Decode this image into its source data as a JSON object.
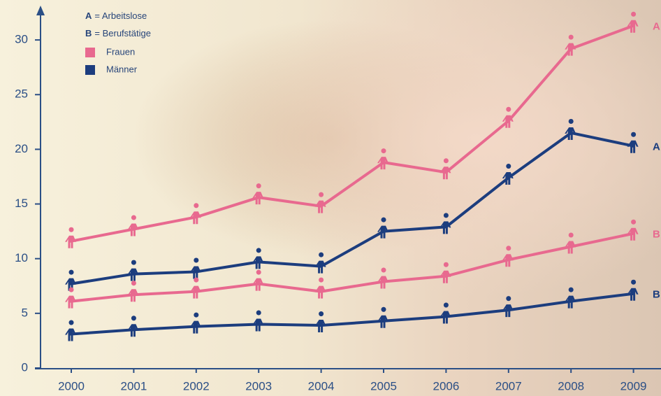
{
  "chart_data": {
    "type": "line",
    "notes": [
      {
        "key": "A",
        "text": "= Arbeitslose"
      },
      {
        "key": "B",
        "text": "= Berufstätige"
      }
    ],
    "categories": [
      "2000",
      "2001",
      "2002",
      "2003",
      "2004",
      "2005",
      "2006",
      "2007",
      "2008",
      "2009"
    ],
    "series": [
      {
        "name": "Frauen",
        "group": "A",
        "color": "#e8698f",
        "values": [
          11.6,
          12.7,
          13.8,
          15.6,
          14.8,
          18.8,
          17.9,
          22.6,
          29.2,
          31.3
        ]
      },
      {
        "name": "Männer",
        "group": "A",
        "color": "#1c3d7e",
        "values": [
          7.7,
          8.6,
          8.8,
          9.7,
          9.3,
          12.5,
          12.9,
          17.4,
          21.5,
          20.3
        ]
      },
      {
        "name": "Frauen",
        "group": "B",
        "color": "#e8698f",
        "values": [
          6.1,
          6.7,
          7.0,
          7.7,
          7.0,
          7.9,
          8.4,
          9.9,
          11.1,
          12.3
        ]
      },
      {
        "name": "Männer",
        "group": "B",
        "color": "#1c3d7e",
        "values": [
          3.1,
          3.5,
          3.8,
          4.0,
          3.9,
          4.3,
          4.7,
          5.3,
          6.1,
          6.8
        ]
      }
    ],
    "ylim": [
      0,
      33
    ],
    "yticks": [
      0,
      5,
      10,
      15,
      20,
      25,
      30
    ]
  }
}
